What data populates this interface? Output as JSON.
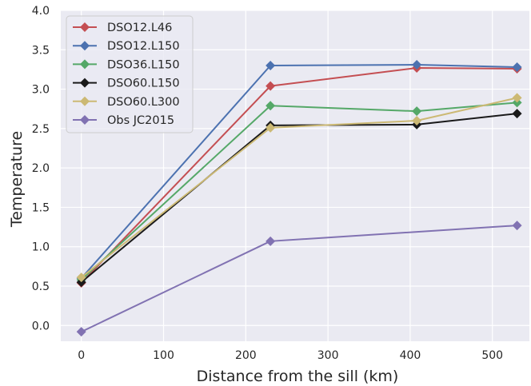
{
  "chart_data": {
    "type": "line",
    "title": "",
    "xlabel": "Distance from the sill (km)",
    "ylabel": "Temperature",
    "xlim": [
      -25,
      545
    ],
    "ylim": [
      -0.2,
      4.0
    ],
    "xticks": [
      0,
      100,
      200,
      300,
      400,
      500
    ],
    "xtick_labels": [
      "0",
      "100",
      "200",
      "300",
      "400",
      "500"
    ],
    "yticks": [
      0.0,
      0.5,
      1.0,
      1.5,
      2.0,
      2.5,
      3.0,
      3.5,
      4.0
    ],
    "ytick_labels": [
      "0.0",
      "0.5",
      "1.0",
      "1.5",
      "2.0",
      "2.5",
      "3.0",
      "3.5",
      "4.0"
    ],
    "grid": true,
    "legend_position": "top-left",
    "series": [
      {
        "name": "DSO12.L46",
        "color": "#c44e52",
        "x": [
          0,
          230,
          408,
          530
        ],
        "values": [
          0.54,
          3.04,
          3.27,
          3.26
        ]
      },
      {
        "name": "DSO12.L150",
        "color": "#4c72b0",
        "x": [
          0,
          230,
          408,
          530
        ],
        "values": [
          0.6,
          3.3,
          3.31,
          3.28
        ]
      },
      {
        "name": "DSO36.L150",
        "color": "#55a868",
        "x": [
          0,
          230,
          408,
          530
        ],
        "values": [
          0.58,
          2.79,
          2.72,
          2.83
        ]
      },
      {
        "name": "DSO60.L150",
        "color": "#1a1a1a",
        "x": [
          0,
          230,
          408,
          530
        ],
        "values": [
          0.55,
          2.54,
          2.55,
          2.69
        ]
      },
      {
        "name": "DSO60.L300",
        "color": "#ccb974",
        "x": [
          0,
          230,
          408,
          530
        ],
        "values": [
          0.61,
          2.51,
          2.6,
          2.89
        ]
      },
      {
        "name": "Obs JC2015",
        "color": "#8172b2",
        "x": [
          0,
          230,
          530
        ],
        "values": [
          -0.08,
          1.07,
          1.27
        ]
      }
    ]
  }
}
